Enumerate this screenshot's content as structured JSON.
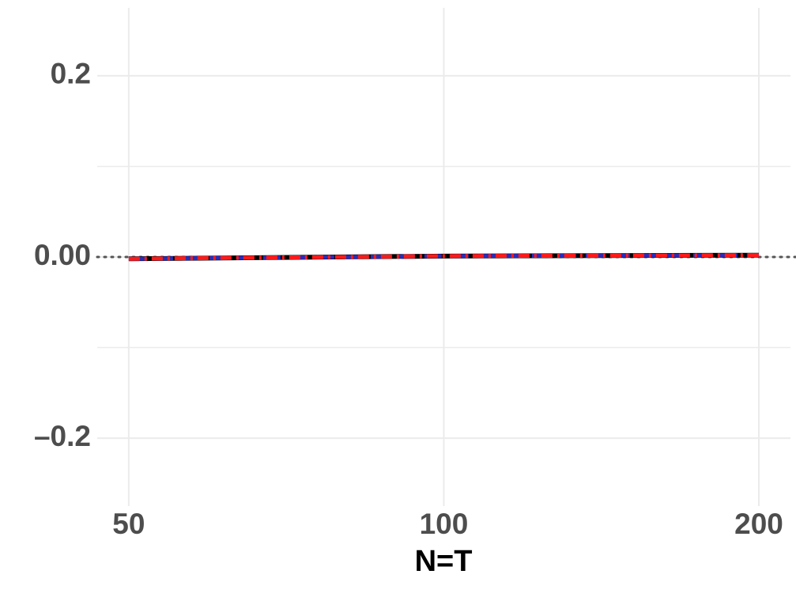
{
  "chart_data": {
    "type": "line",
    "x_label": "N=T",
    "x_scale": "log",
    "xlim": [
      46.65,
      214.4
    ],
    "xticks": [
      50,
      100,
      200
    ],
    "ylim": [
      -0.275,
      0.275
    ],
    "yticks": [
      {
        "value": -0.2,
        "label": "–0.2"
      },
      {
        "value": 0,
        "label": "0.00"
      },
      0.2
    ],
    "y_minor_ticks": [
      -0.1,
      0.1
    ],
    "reference_line": 0,
    "grid": true,
    "x": [
      50,
      100,
      200
    ],
    "series": [
      {
        "color": "#000000",
        "values": [
          -0.002,
          0.001,
          0.002
        ]
      },
      {
        "color": "#2b2bb8",
        "values": [
          -0.002,
          0.001,
          0.002
        ]
      },
      {
        "color": "#ff1a1a",
        "values": [
          -0.002,
          0.001,
          0.002
        ]
      }
    ]
  }
}
